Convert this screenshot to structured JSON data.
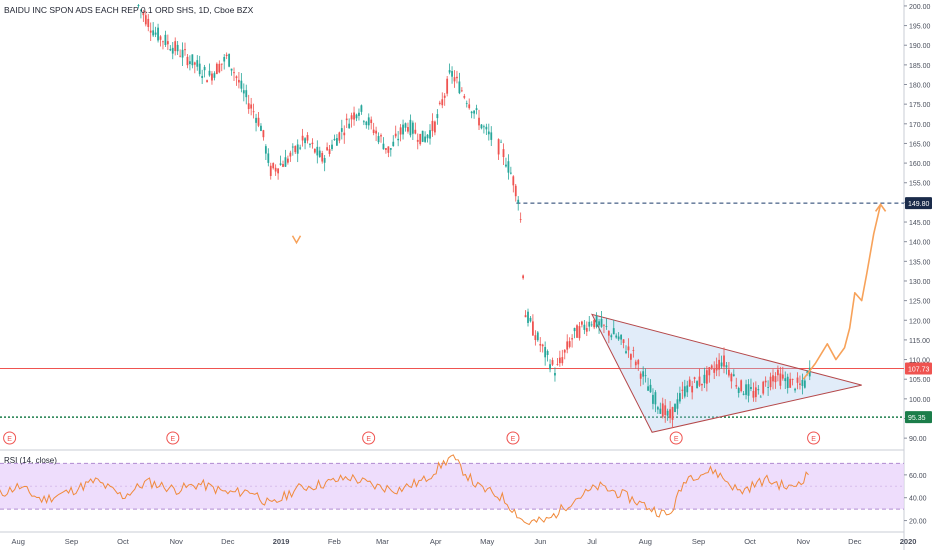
{
  "header": {
    "symbol_title": "BAIDU INC SPON ADS EACH REP 0.1 ORD SHS, 1D, Cboe BZX"
  },
  "rsi_panel": {
    "label": "RSI (14, close)"
  },
  "chart_data": [
    {
      "type": "candlestick",
      "title": "BAIDU INC SPON ADS EACH REP 0.1 ORD SHS, 1D, Cboe BZX",
      "x_tick_labels": [
        "Aug",
        "Sep",
        "Oct",
        "Nov",
        "Dec",
        "2019",
        "Feb",
        "Mar",
        "Apr",
        "May",
        "Jun",
        "Jul",
        "Aug",
        "Sep",
        "Oct",
        "Nov",
        "Dec",
        "2020"
      ],
      "y_tick_labels": [
        "90.00",
        "95.00",
        "100.00",
        "105.00",
        "110.00",
        "115.00",
        "120.00",
        "125.00",
        "130.00",
        "135.00",
        "140.00",
        "145.00",
        "150.00",
        "155.00",
        "160.00",
        "165.00",
        "170.00",
        "175.00",
        "180.00",
        "185.00",
        "190.00",
        "195.00",
        "200.00"
      ],
      "ylim": [
        88,
        201
      ],
      "price_labels": [
        {
          "label": "149.80",
          "value": 149.8,
          "color": "#1a2b4a"
        },
        {
          "label": "107.73",
          "value": 107.73,
          "color": "#ef5350"
        },
        {
          "label": "95.35",
          "value": 95.35,
          "color": "#1b7d4a"
        }
      ],
      "earnings_markers": [
        {
          "label": "E",
          "date": "2018-07-27"
        },
        {
          "label": "E",
          "date": "2018-10-30"
        },
        {
          "label": "E",
          "date": "2019-02-21"
        },
        {
          "label": "E",
          "date": "2019-05-16"
        },
        {
          "label": "E",
          "date": "2019-08-19"
        },
        {
          "label": "E",
          "date": "2019-11-07"
        }
      ],
      "path_points": [
        {
          "date": "2018-10-10",
          "close": 200
        },
        {
          "date": "2018-10-20",
          "close": 193
        },
        {
          "date": "2018-11-01",
          "close": 189
        },
        {
          "date": "2018-11-10",
          "close": 186
        },
        {
          "date": "2018-11-20",
          "close": 182
        },
        {
          "date": "2018-12-01",
          "close": 187
        },
        {
          "date": "2018-12-10",
          "close": 178
        },
        {
          "date": "2018-12-20",
          "close": 170
        },
        {
          "date": "2018-12-26",
          "close": 158
        },
        {
          "date": "2019-01-05",
          "close": 161
        },
        {
          "date": "2019-01-15",
          "close": 166
        },
        {
          "date": "2019-01-25",
          "close": 161
        },
        {
          "date": "2019-02-05",
          "close": 168
        },
        {
          "date": "2019-02-15",
          "close": 174
        },
        {
          "date": "2019-02-25",
          "close": 168
        },
        {
          "date": "2019-03-05",
          "close": 163
        },
        {
          "date": "2019-03-15",
          "close": 170
        },
        {
          "date": "2019-03-25",
          "close": 166
        },
        {
          "date": "2019-04-01",
          "close": 170
        },
        {
          "date": "2019-04-10",
          "close": 183
        },
        {
          "date": "2019-04-20",
          "close": 176
        },
        {
          "date": "2019-04-30",
          "close": 168
        },
        {
          "date": "2019-05-10",
          "close": 163
        },
        {
          "date": "2019-05-16",
          "close": 156
        },
        {
          "date": "2019-05-20",
          "close": 150
        },
        {
          "date": "2019-05-23",
          "close": 122
        },
        {
          "date": "2019-06-03",
          "close": 112
        },
        {
          "date": "2019-06-10",
          "close": 107
        },
        {
          "date": "2019-06-20",
          "close": 116
        },
        {
          "date": "2019-07-01",
          "close": 120
        },
        {
          "date": "2019-07-15",
          "close": 116
        },
        {
          "date": "2019-07-25",
          "close": 111
        },
        {
          "date": "2019-08-05",
          "close": 101
        },
        {
          "date": "2019-08-15",
          "close": 95
        },
        {
          "date": "2019-08-25",
          "close": 103
        },
        {
          "date": "2019-09-05",
          "close": 105
        },
        {
          "date": "2019-09-15",
          "close": 110
        },
        {
          "date": "2019-09-25",
          "close": 103
        },
        {
          "date": "2019-10-05",
          "close": 101
        },
        {
          "date": "2019-10-15",
          "close": 106
        },
        {
          "date": "2019-10-25",
          "close": 104
        },
        {
          "date": "2019-11-01",
          "close": 103
        },
        {
          "date": "2019-11-05",
          "close": 107.73
        }
      ],
      "horizontal_lines": [
        {
          "value": 149.8,
          "color": "#1a3a6a",
          "style": "dashed",
          "from_date": "2019-05-18"
        },
        {
          "value": 107.73,
          "color": "#ef5350",
          "style": "solid"
        },
        {
          "value": 95.35,
          "color": "#1b7d4a",
          "style": "dotted"
        }
      ],
      "drawings": {
        "triangle": {
          "points": [
            {
              "date": "2019-07-01",
              "value": 121.5
            },
            {
              "date": "2019-08-05",
              "value": 91.5
            },
            {
              "date": "2019-12-05",
              "value": 103.5
            }
          ],
          "edge_color": "#b5484a",
          "fill_color": "#a9c8ee"
        },
        "projection_arrow": {
          "color": "#f7a25a",
          "points": [
            {
              "date": "2019-11-01",
              "value": 105
            },
            {
              "date": "2019-11-08",
              "value": 109
            },
            {
              "date": "2019-11-15",
              "value": 114
            },
            {
              "date": "2019-11-20",
              "value": 110
            },
            {
              "date": "2019-11-25",
              "value": 113
            },
            {
              "date": "2019-11-28",
              "value": 118
            },
            {
              "date": "2019-12-01",
              "value": 127
            },
            {
              "date": "2019-12-05",
              "value": 125
            },
            {
              "date": "2019-12-08",
              "value": 132
            },
            {
              "date": "2019-12-12",
              "value": 142
            },
            {
              "date": "2019-12-16",
              "value": 149.5
            }
          ]
        },
        "small_marker": {
          "label": "V",
          "date": "2019-01-10",
          "value": 140.5,
          "color": "#f7a25a"
        }
      }
    },
    {
      "type": "line",
      "title": "RSI (14, close)",
      "y_tick_labels": [
        "20.00",
        "40.00",
        "60.00"
      ],
      "ylim": [
        10,
        80
      ],
      "bands": {
        "upper": 70,
        "lower": 30,
        "fill_color": "#ead5fb"
      },
      "line_color": "#f08a3c",
      "series": [
        {
          "values": [
            {
              "date": "2018-07-20",
              "value": 42
            },
            {
              "date": "2018-08-01",
              "value": 50
            },
            {
              "date": "2018-08-15",
              "value": 38
            },
            {
              "date": "2018-09-01",
              "value": 46
            },
            {
              "date": "2018-09-15",
              "value": 55
            },
            {
              "date": "2018-10-01",
              "value": 41
            },
            {
              "date": "2018-10-15",
              "value": 54
            },
            {
              "date": "2018-11-01",
              "value": 47
            },
            {
              "date": "2018-11-15",
              "value": 52
            },
            {
              "date": "2018-12-01",
              "value": 44
            },
            {
              "date": "2018-12-15",
              "value": 46
            },
            {
              "date": "2018-12-26",
              "value": 33
            },
            {
              "date": "2019-01-10",
              "value": 48
            },
            {
              "date": "2019-01-25",
              "value": 52
            },
            {
              "date": "2019-02-10",
              "value": 58
            },
            {
              "date": "2019-02-25",
              "value": 50
            },
            {
              "date": "2019-03-10",
              "value": 47
            },
            {
              "date": "2019-03-25",
              "value": 55
            },
            {
              "date": "2019-04-10",
              "value": 76
            },
            {
              "date": "2019-04-25",
              "value": 50
            },
            {
              "date": "2019-05-10",
              "value": 40
            },
            {
              "date": "2019-05-23",
              "value": 18
            },
            {
              "date": "2019-06-05",
              "value": 20
            },
            {
              "date": "2019-06-20",
              "value": 38
            },
            {
              "date": "2019-07-05",
              "value": 50
            },
            {
              "date": "2019-07-20",
              "value": 42
            },
            {
              "date": "2019-08-05",
              "value": 30
            },
            {
              "date": "2019-08-15",
              "value": 24
            },
            {
              "date": "2019-08-25",
              "value": 58
            },
            {
              "date": "2019-09-10",
              "value": 64
            },
            {
              "date": "2019-09-25",
              "value": 45
            },
            {
              "date": "2019-10-10",
              "value": 56
            },
            {
              "date": "2019-10-25",
              "value": 48
            },
            {
              "date": "2019-11-05",
              "value": 62
            }
          ]
        }
      ]
    }
  ]
}
